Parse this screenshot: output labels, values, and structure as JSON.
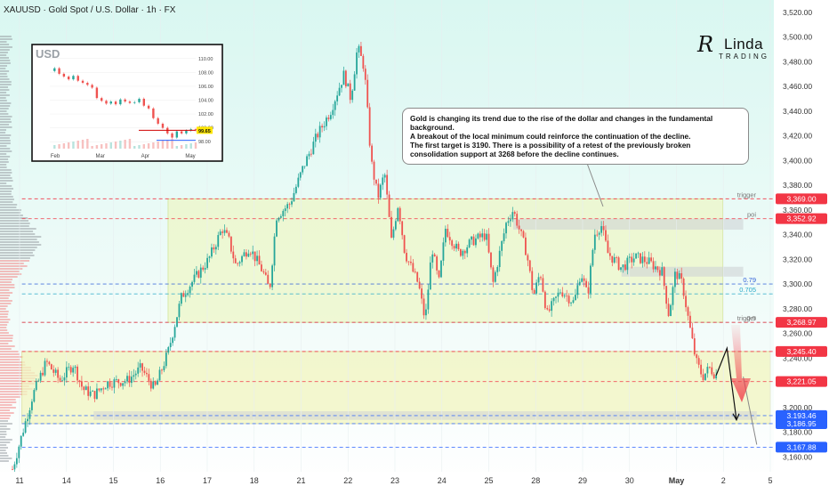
{
  "header": {
    "symbol_line": "XAUUSD · Gold Spot / U.S. Dollar · 1h · FX"
  },
  "logo": {
    "initial": "R",
    "line1": "Linda",
    "line2": "TRADING"
  },
  "annotation": {
    "lines": [
      "Gold is changing its trend due to the rise of the dollar and changes in the fundamental background.",
      "A breakout of the local minimum could reinforce the continuation of the decline.",
      "The first target is 3190. There is a possibility of a retest of the previously broken",
      "consolidation support at 3268 before the decline continues."
    ]
  },
  "colors": {
    "bull": "#26a69a",
    "bear": "#ef5350",
    "zone_upper": "#eef7c8",
    "zone_lower": "#f2f5c0",
    "red_label": "#f23645",
    "blue_label": "#2962ff",
    "fib": "#2f5fd8"
  },
  "chart_data": [
    {
      "type": "candlestick",
      "title": "XAUUSD · Gold Spot / U.S. Dollar · 1h · FX",
      "x_ticks": [
        "11",
        "14",
        "15",
        "16",
        "17",
        "18",
        "21",
        "22",
        "23",
        "24",
        "25",
        "28",
        "29",
        "30",
        "May",
        "2",
        "5"
      ],
      "y_ticks": [
        "3,160.00",
        "3,180.00",
        "3,200.00",
        "3,220.00",
        "3,240.00",
        "3,260.00",
        "3,280.00",
        "3,300.00",
        "3,320.00",
        "3,340.00",
        "3,360.00",
        "3,380.00",
        "3,400.00",
        "3,420.00",
        "3,440.00",
        "3,460.00",
        "3,480.00",
        "3,500.00",
        "3,520.00"
      ],
      "ylim": [
        3148,
        3530
      ],
      "price_path": [
        [
          0,
          3150
        ],
        [
          1.5,
          3210
        ],
        [
          2.5,
          3237
        ],
        [
          3.5,
          3222
        ],
        [
          4.5,
          3235
        ],
        [
          5.2,
          3215
        ],
        [
          6,
          3210
        ],
        [
          7,
          3220
        ],
        [
          8.5,
          3222
        ],
        [
          9.5,
          3232
        ],
        [
          10.5,
          3215
        ],
        [
          11.5,
          3245
        ],
        [
          12.5,
          3290
        ],
        [
          13.5,
          3305
        ],
        [
          14.5,
          3320
        ],
        [
          15.5,
          3345
        ],
        [
          16,
          3335
        ],
        [
          16.5,
          3315
        ],
        [
          17.5,
          3330
        ],
        [
          18.5,
          3310
        ],
        [
          19,
          3295
        ],
        [
          19.5,
          3355
        ],
        [
          20.5,
          3365
        ],
        [
          21.5,
          3395
        ],
        [
          22.5,
          3420
        ],
        [
          23.5,
          3440
        ],
        [
          24.5,
          3470
        ],
        [
          25,
          3450
        ],
        [
          25.5,
          3492
        ],
        [
          26,
          3475
        ],
        [
          26.5,
          3400
        ],
        [
          27,
          3370
        ],
        [
          27.5,
          3390
        ],
        [
          28,
          3335
        ],
        [
          28.5,
          3365
        ],
        [
          29,
          3325
        ],
        [
          30,
          3300
        ],
        [
          30.5,
          3270
        ],
        [
          31,
          3330
        ],
        [
          31.5,
          3300
        ],
        [
          32,
          3345
        ],
        [
          33,
          3325
        ],
        [
          34,
          3335
        ],
        [
          35,
          3340
        ],
        [
          35.5,
          3300
        ],
        [
          36,
          3325
        ],
        [
          36.5,
          3350
        ],
        [
          37,
          3360
        ],
        [
          38,
          3325
        ],
        [
          38.5,
          3290
        ],
        [
          39,
          3310
        ],
        [
          39.5,
          3275
        ],
        [
          40.5,
          3295
        ],
        [
          41.5,
          3285
        ],
        [
          42,
          3310
        ],
        [
          42.5,
          3290
        ],
        [
          43,
          3340
        ],
        [
          43.5,
          3348
        ],
        [
          44,
          3325
        ],
        [
          45,
          3313
        ],
        [
          46,
          3322
        ],
        [
          47,
          3318
        ],
        [
          48,
          3310
        ],
        [
          48.5,
          3275
        ],
        [
          49,
          3310
        ],
        [
          49.5,
          3300
        ],
        [
          50,
          3268
        ],
        [
          50.5,
          3238
        ],
        [
          51,
          3225
        ],
        [
          51.5,
          3232
        ],
        [
          52,
          3226
        ]
      ],
      "x_domain": [
        0,
        56
      ],
      "levels": [
        {
          "label": "trigger",
          "value": "3,369.00",
          "price": 3369,
          "color": "#f23645"
        },
        {
          "label": "poi",
          "value": "3,352.92",
          "price": 3352.92,
          "color": "#f23645"
        },
        {
          "label": "0.79",
          "value": "",
          "price": 3300,
          "color": "#2f5fd8"
        },
        {
          "label": "0.705",
          "value": "",
          "price": 3292,
          "color": "#29a9c9"
        },
        {
          "label": "0.5",
          "value": "",
          "price": 3268.97,
          "color": "#999999"
        },
        {
          "label": "trigger",
          "value": "3,268.97",
          "price": 3268.97,
          "color": "#f23645"
        },
        {
          "label": "",
          "value": "3,245.40",
          "price": 3245.4,
          "color": "#f23645"
        },
        {
          "label": "",
          "value": "3,221.05",
          "price": 3221.05,
          "color": "#f23645"
        },
        {
          "label": "",
          "value": "3,193.46",
          "price": 3193.46,
          "color": "#2962ff"
        },
        {
          "label": "",
          "value": "3,186.95",
          "price": 3186.95,
          "color": "#2962ff"
        },
        {
          "label": "",
          "value": "3,167.88",
          "price": 3167.88,
          "color": "#2962ff"
        }
      ],
      "zones": [
        {
          "name": "upper-consolidation",
          "top": 3369,
          "bottom": 3268.97,
          "x0": 11.5,
          "x1": 52.5
        },
        {
          "name": "lower-consolidation",
          "top": 3245.4,
          "bottom": 3186.95,
          "x0": 0.7,
          "x1": 56
        }
      ],
      "projection": {
        "retest": [
          [
            52,
            3226
          ],
          [
            52.8,
            3248
          ],
          [
            53.5,
            3190
          ]
        ],
        "alt": [
          [
            54,
            3225
          ],
          [
            55,
            3170
          ]
        ]
      }
    },
    {
      "type": "line",
      "title": "USD",
      "x_ticks": [
        "Feb",
        "Mar",
        "Apr",
        "May"
      ],
      "y_ticks": [
        "98.00",
        "100.00",
        "102.00",
        "104.00",
        "106.00",
        "108.00",
        "110.00"
      ],
      "ylim": [
        97,
        111
      ],
      "current_value": "99.65",
      "values": [
        108.2,
        108.6,
        107.8,
        107.4,
        107.0,
        107.5,
        106.8,
        106.5,
        106.2,
        105.8,
        104.3,
        103.9,
        103.5,
        103.8,
        103.4,
        104.1,
        103.8,
        103.6,
        103.7,
        104.2,
        103.2,
        102.8,
        101.4,
        100.6,
        100.0,
        99.2,
        98.6,
        99.5,
        99.2,
        99.6,
        99.8,
        99.65
      ]
    }
  ]
}
